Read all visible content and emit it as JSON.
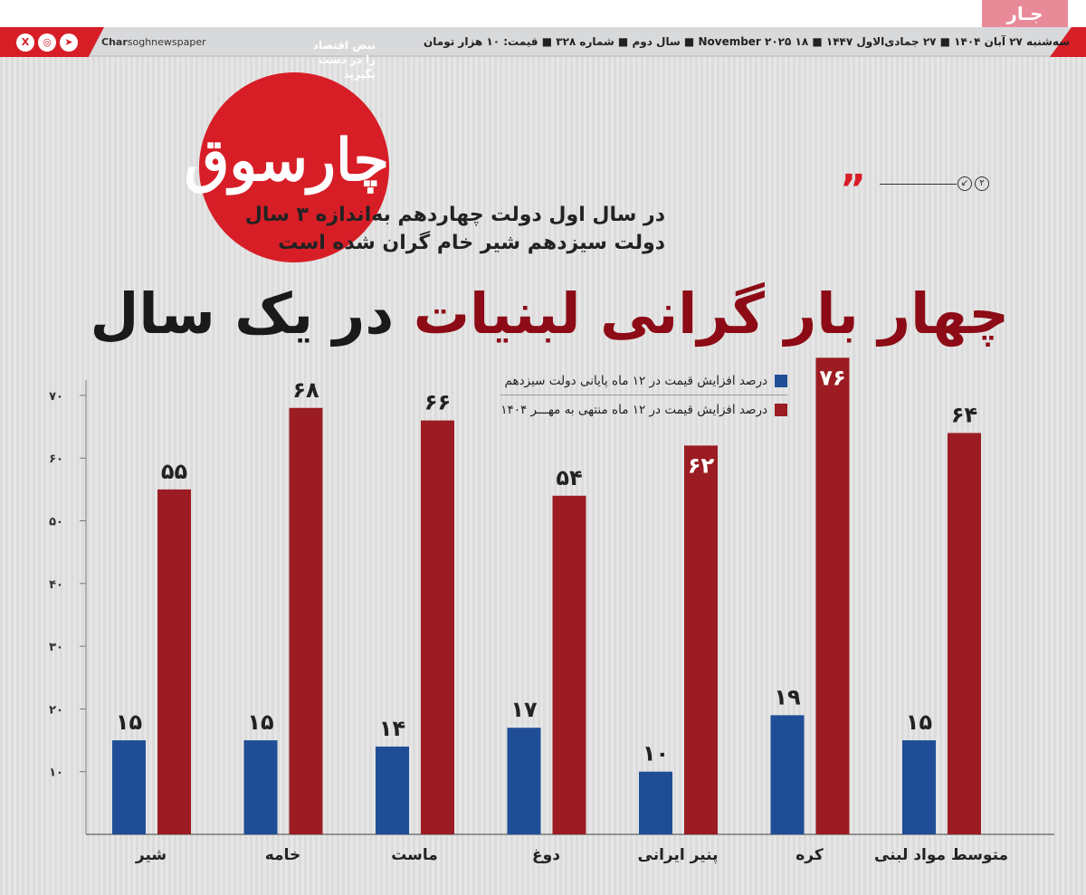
{
  "masthead": {
    "section_tab": "جـار",
    "social_icons": [
      "x-icon",
      "instagram-icon",
      "telegram-icon"
    ],
    "handle_bold": "Char",
    "handle_rest": "soghnewspaper",
    "dateline": "سه‌شنبه ۲۷ آبان ۱۴۰۴ ■ ۲۷ جمادی‌الاول ۱۴۴۷ ■ ۱۸ November ۲۰۲۵ ■ سال دوم ■ شماره ۳۲۸ ■ قیمت: ۱۰ هزار تومان",
    "logo_text": "چارسوق",
    "tagline": "نبض اقتصاد را در دست بگیرید",
    "brand_color": "#d71e27"
  },
  "article": {
    "page_badge": "۲",
    "subtitle_line1": "در سال اول دولت چهاردهم به‌اندازه ۳ سال",
    "subtitle_line2": "دولت سیزدهم شیر خام گران شده است",
    "headline_red": "چهار بار گرانی لبنیات",
    "headline_black": "در یک سال"
  },
  "chart_data": {
    "type": "bar",
    "categories": [
      "شیر",
      "خامه",
      "ماست",
      "دوغ",
      "پنیر ایرانی",
      "کره",
      "متوسط مواد لبنی"
    ],
    "series": [
      {
        "name": "درصد افزایش قیمت در ۱۲ ماه پایانی دولت سیزدهم",
        "color": "#1f4e96",
        "values": [
          15,
          15,
          14,
          17,
          10,
          19,
          15
        ]
      },
      {
        "name": "درصد افزایش قیمت در ۱۲ ماه منتهی به مهـــر ۱۴۰۴",
        "color": "#9b1c22",
        "values": [
          55,
          68,
          66,
          54,
          62,
          76,
          64
        ]
      }
    ],
    "yticks": [
      10,
      20,
      30,
      40,
      50,
      60,
      70
    ],
    "ylim": [
      0,
      76
    ],
    "legend_position": "top-right",
    "grid": false
  }
}
